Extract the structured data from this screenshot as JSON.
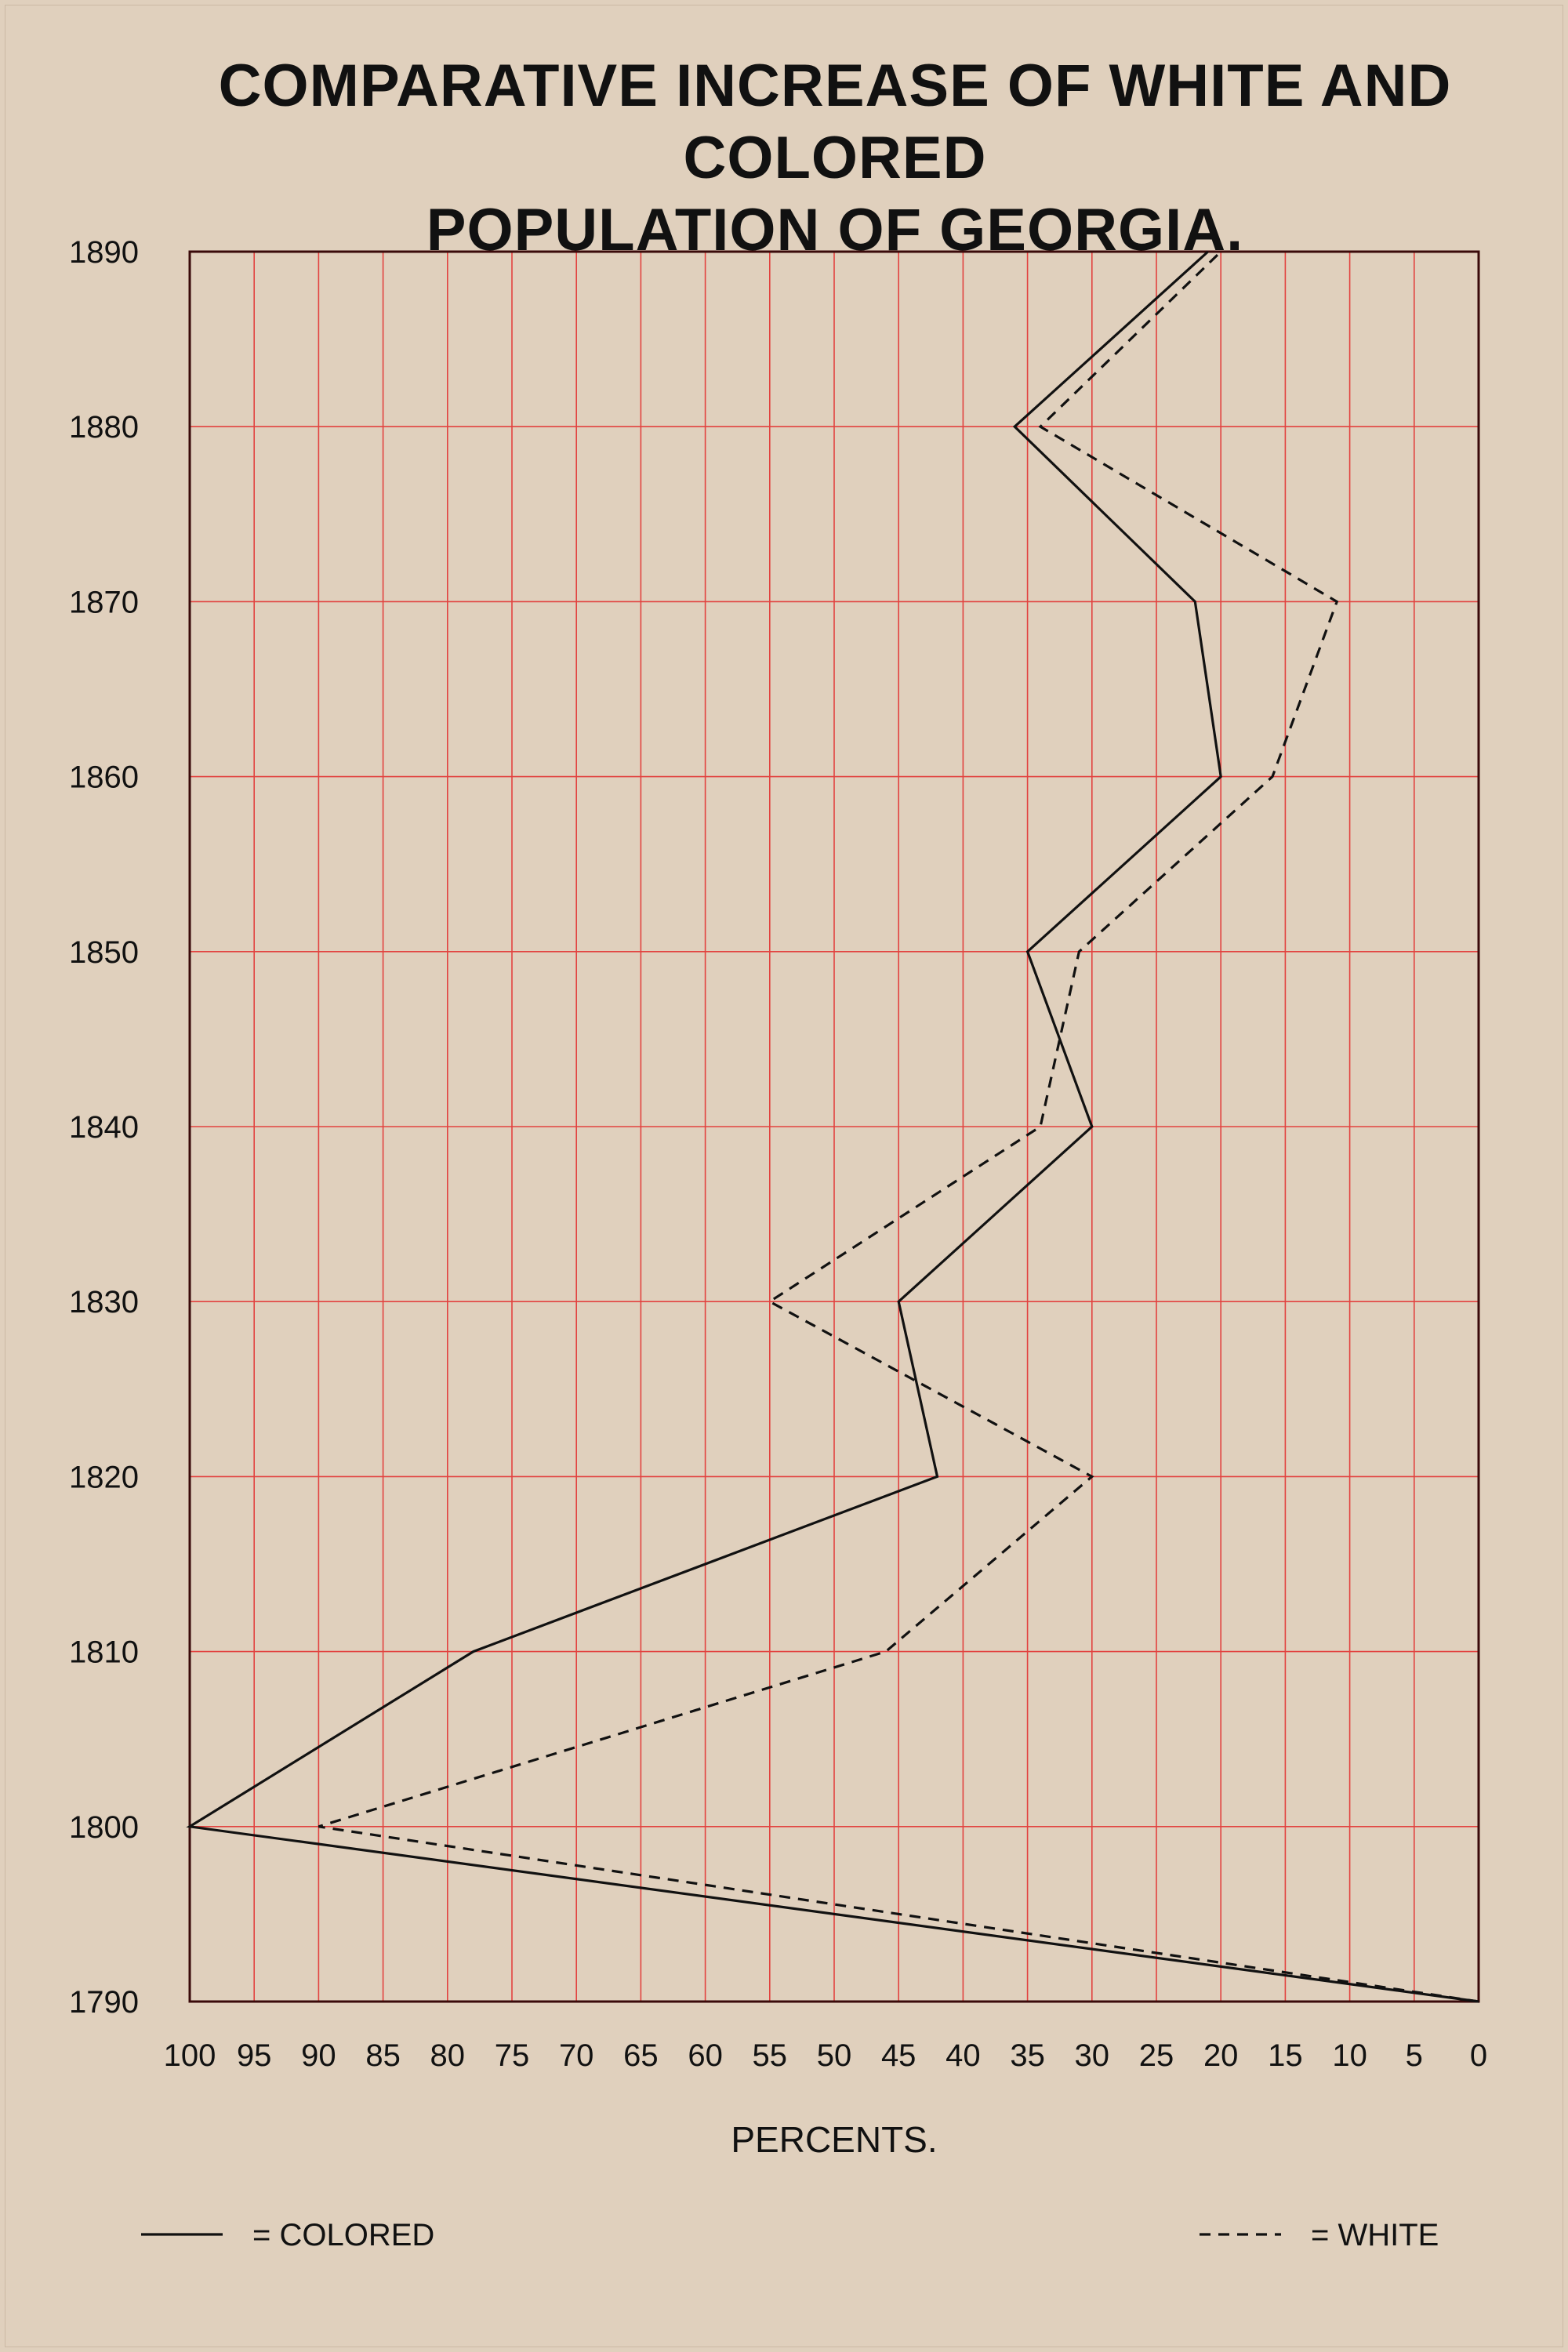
{
  "colors": {
    "background": "#e0d0bd",
    "grid": "#e2423f",
    "frame": "#3a0a0a",
    "line": "#111111"
  },
  "chart_data": {
    "type": "line",
    "orientation": "horizontal-values",
    "title_lines": [
      "COMPARATIVE INCREASE OF WHITE AND COLORED",
      "POPULATION OF GEORGIA."
    ],
    "xlabel": "PERCENTS.",
    "ylabel": "",
    "x_direction": "reversed",
    "xlim": [
      0,
      100
    ],
    "x_ticks": [
      100,
      95,
      90,
      85,
      80,
      75,
      70,
      65,
      60,
      55,
      50,
      45,
      40,
      35,
      30,
      25,
      20,
      15,
      10,
      5,
      0
    ],
    "y_ticks": [
      "1890",
      "1880",
      "1870",
      "1860",
      "1850",
      "1840",
      "1830",
      "1820",
      "1810",
      "1800",
      "1790"
    ],
    "grid": true,
    "legend_placement": "bottom",
    "series": [
      {
        "name": "COLORED",
        "legend_label": "= COLORED",
        "style": "solid",
        "points": [
          {
            "year": "1790",
            "value": 0
          },
          {
            "year": "1800",
            "value": 100
          },
          {
            "year": "1810",
            "value": 78
          },
          {
            "year": "1820",
            "value": 42
          },
          {
            "year": "1830",
            "value": 45
          },
          {
            "year": "1840",
            "value": 30
          },
          {
            "year": "1850",
            "value": 35
          },
          {
            "year": "1860",
            "value": 20
          },
          {
            "year": "1870",
            "value": 22
          },
          {
            "year": "1880",
            "value": 36
          },
          {
            "year": "1890",
            "value": 21
          }
        ]
      },
      {
        "name": "WHITE",
        "legend_label": "= WHITE",
        "style": "dashed",
        "points": [
          {
            "year": "1790",
            "value": 0
          },
          {
            "year": "1800",
            "value": 90
          },
          {
            "year": "1810",
            "value": 46
          },
          {
            "year": "1820",
            "value": 30
          },
          {
            "year": "1830",
            "value": 55
          },
          {
            "year": "1840",
            "value": 34
          },
          {
            "year": "1850",
            "value": 31
          },
          {
            "year": "1860",
            "value": 16
          },
          {
            "year": "1870",
            "value": 11
          },
          {
            "year": "1880",
            "value": 34
          },
          {
            "year": "1890",
            "value": 20
          }
        ]
      }
    ]
  }
}
